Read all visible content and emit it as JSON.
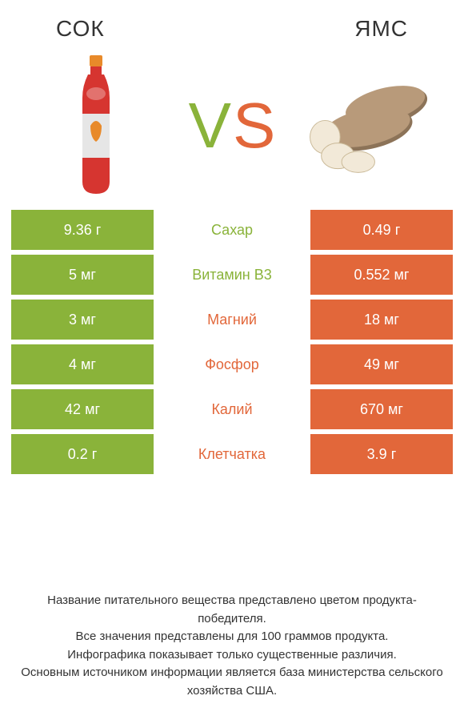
{
  "header": {
    "left_title": "СОК",
    "right_title": "ЯМС"
  },
  "vs": {
    "v": "V",
    "s": "S"
  },
  "colors": {
    "green": "#8ab33a",
    "orange": "#e2673a",
    "text": "#333333",
    "white": "#ffffff",
    "bottle_red": "#d63530",
    "bottle_cap": "#e88a2a",
    "bottle_label": "#e6e6e6",
    "yam_brown": "#b89a7a",
    "yam_dark": "#8c7358",
    "yam_flesh": "#f2e9d8"
  },
  "rows": [
    {
      "left": "9.36 г",
      "label": "Сахар",
      "right": "0.49 г",
      "winner": "left"
    },
    {
      "left": "5 мг",
      "label": "Витамин B3",
      "right": "0.552 мг",
      "winner": "left"
    },
    {
      "left": "3 мг",
      "label": "Магний",
      "right": "18 мг",
      "winner": "right"
    },
    {
      "left": "4 мг",
      "label": "Фосфор",
      "right": "49 мг",
      "winner": "right"
    },
    {
      "left": "42 мг",
      "label": "Калий",
      "right": "670 мг",
      "winner": "right"
    },
    {
      "left": "0.2 г",
      "label": "Клетчатка",
      "right": "3.9 г",
      "winner": "right"
    }
  ],
  "footer": {
    "line1": "Название питательного вещества представлено цветом продукта-победителя.",
    "line2": "Все значения представлены для 100 граммов продукта.",
    "line3": "Инфографика показывает только существенные различия.",
    "line4": "Основным источником информации является база министерства сельского хозяйства США."
  }
}
